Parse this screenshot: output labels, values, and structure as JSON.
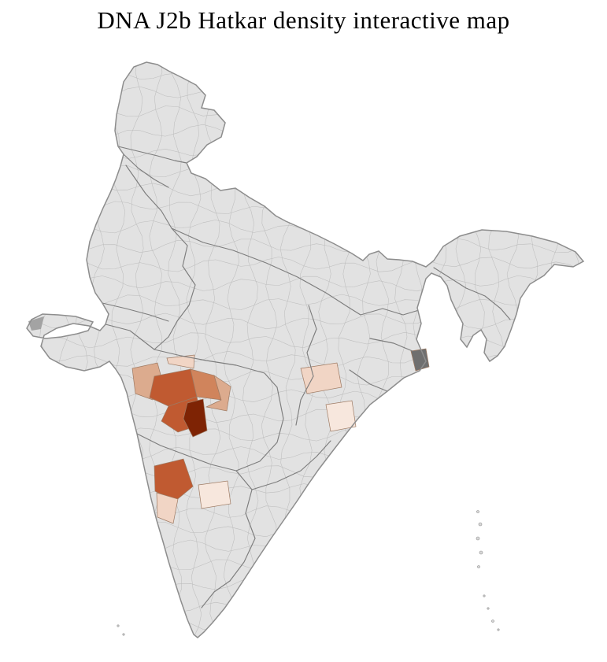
{
  "title": "DNA J2b Hatkar density interactive map",
  "map": {
    "country": "India",
    "kind": "district-level choropleth",
    "palette": {
      "sea": "#ffffff",
      "land": "#e2e2e2",
      "district_border": "#bcbcbc",
      "state_border": "#7d7d7d",
      "outline": "#8d8d8d",
      "darkest": "#7e2304",
      "high": "#c05a31",
      "medium": "#d0845c",
      "low": "#dcab8e",
      "faint": "#f1d5c5",
      "faintest": "#f7e7dd",
      "metro": "#6f6f6f",
      "salt_marsh": "#a3a3a3",
      "island": "#d9d9d9"
    }
  }
}
